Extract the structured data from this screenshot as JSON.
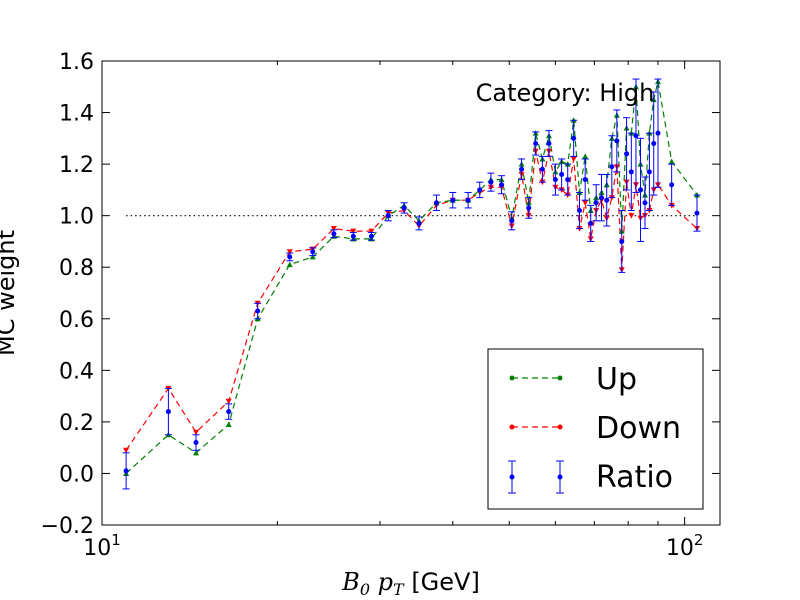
{
  "chart_data": {
    "type": "line",
    "annotation": "Category: High",
    "ylabel": "MC weight",
    "xlabel": {
      "symbol": "B",
      "subscript": "0",
      "var": "p",
      "var_subscript": "T",
      "unit": " [GeV]"
    },
    "xscale": "log",
    "xlim": [
      10,
      115
    ],
    "ylim": [
      -0.2,
      1.6
    ],
    "x_ticks": [
      {
        "value": 10,
        "base": "10",
        "exp": "1"
      },
      {
        "value": 100,
        "base": "10",
        "exp": "2"
      }
    ],
    "y_ticks": [
      "−0.2",
      "0.0",
      "0.2",
      "0.4",
      "0.6",
      "0.8",
      "1.0",
      "1.2",
      "1.4",
      "1.6"
    ],
    "reference_line": 1.0,
    "legend": {
      "position": "lower-right",
      "entries": [
        "Up",
        "Down",
        "Ratio"
      ]
    },
    "colors": {
      "up": "#008000",
      "down": "#ff0000",
      "ratio": "#0000ff",
      "reference": "#000000"
    },
    "x": [
      11,
      13,
      14.5,
      16.5,
      18.5,
      21,
      23,
      25,
      27,
      29,
      31,
      33,
      35,
      37.5,
      40,
      42.5,
      44.5,
      46.5,
      48.5,
      50.5,
      52.5,
      54,
      55.5,
      57,
      58.5,
      60,
      61.5,
      63,
      64.5,
      66,
      67.5,
      69,
      70.5,
      72,
      73.5,
      75,
      76.5,
      78,
      79.5,
      81,
      82.5,
      84,
      85.5,
      87,
      88.5,
      90,
      95,
      105
    ],
    "series": [
      {
        "name": "Up",
        "values": [
          0.0,
          0.15,
          0.08,
          0.19,
          0.6,
          0.81,
          0.84,
          0.92,
          0.91,
          0.91,
          1.0,
          1.04,
          0.98,
          1.05,
          1.06,
          1.06,
          1.1,
          1.14,
          1.14,
          0.99,
          1.2,
          1.05,
          1.32,
          1.22,
          1.31,
          1.17,
          1.21,
          1.2,
          1.37,
          1.09,
          1.23,
          1.02,
          1.07,
          1.09,
          1.12,
          1.3,
          1.39,
          0.94,
          1.34,
          1.32,
          1.5,
          1.2,
          1.08,
          1.32,
          1.45,
          1.52,
          1.21,
          1.08
        ]
      },
      {
        "name": "Down",
        "values": [
          0.09,
          0.33,
          0.16,
          0.28,
          0.66,
          0.86,
          0.87,
          0.95,
          0.94,
          0.94,
          1.01,
          1.02,
          0.96,
          1.04,
          1.06,
          1.06,
          1.09,
          1.11,
          1.11,
          0.96,
          1.16,
          1.0,
          1.25,
          1.13,
          1.25,
          1.11,
          1.1,
          1.08,
          1.22,
          0.95,
          1.05,
          0.91,
          1.02,
          1.06,
          0.99,
          1.07,
          1.19,
          0.79,
          1.13,
          1.0,
          1.12,
          0.99,
          1.0,
          1.02,
          1.1,
          1.12,
          1.04,
          0.95
        ]
      },
      {
        "name": "Ratio",
        "values": [
          0.01,
          0.24,
          0.12,
          0.24,
          0.63,
          0.84,
          0.86,
          0.93,
          0.92,
          0.92,
          1.0,
          1.03,
          0.97,
          1.05,
          1.06,
          1.06,
          1.1,
          1.13,
          1.12,
          0.98,
          1.18,
          1.03,
          1.28,
          1.18,
          1.28,
          1.14,
          1.16,
          1.14,
          1.3,
          1.02,
          1.14,
          0.97,
          1.05,
          1.07,
          1.06,
          1.19,
          1.29,
          0.9,
          1.24,
          1.17,
          1.31,
          1.1,
          1.05,
          1.17,
          1.28,
          1.32,
          1.12,
          1.01
        ],
        "errors": [
          0.07,
          0.09,
          0.03,
          0.03,
          0.03,
          0.015,
          0.015,
          0.015,
          0.015,
          0.015,
          0.02,
          0.02,
          0.025,
          0.03,
          0.03,
          0.03,
          0.03,
          0.035,
          0.035,
          0.035,
          0.04,
          0.04,
          0.045,
          0.05,
          0.05,
          0.06,
          0.06,
          0.06,
          0.07,
          0.07,
          0.08,
          0.07,
          0.07,
          0.09,
          0.1,
          0.12,
          0.12,
          0.12,
          0.14,
          0.15,
          0.22,
          0.2,
          0.1,
          0.15,
          0.2,
          0.21,
          0.08,
          0.07
        ]
      }
    ]
  }
}
